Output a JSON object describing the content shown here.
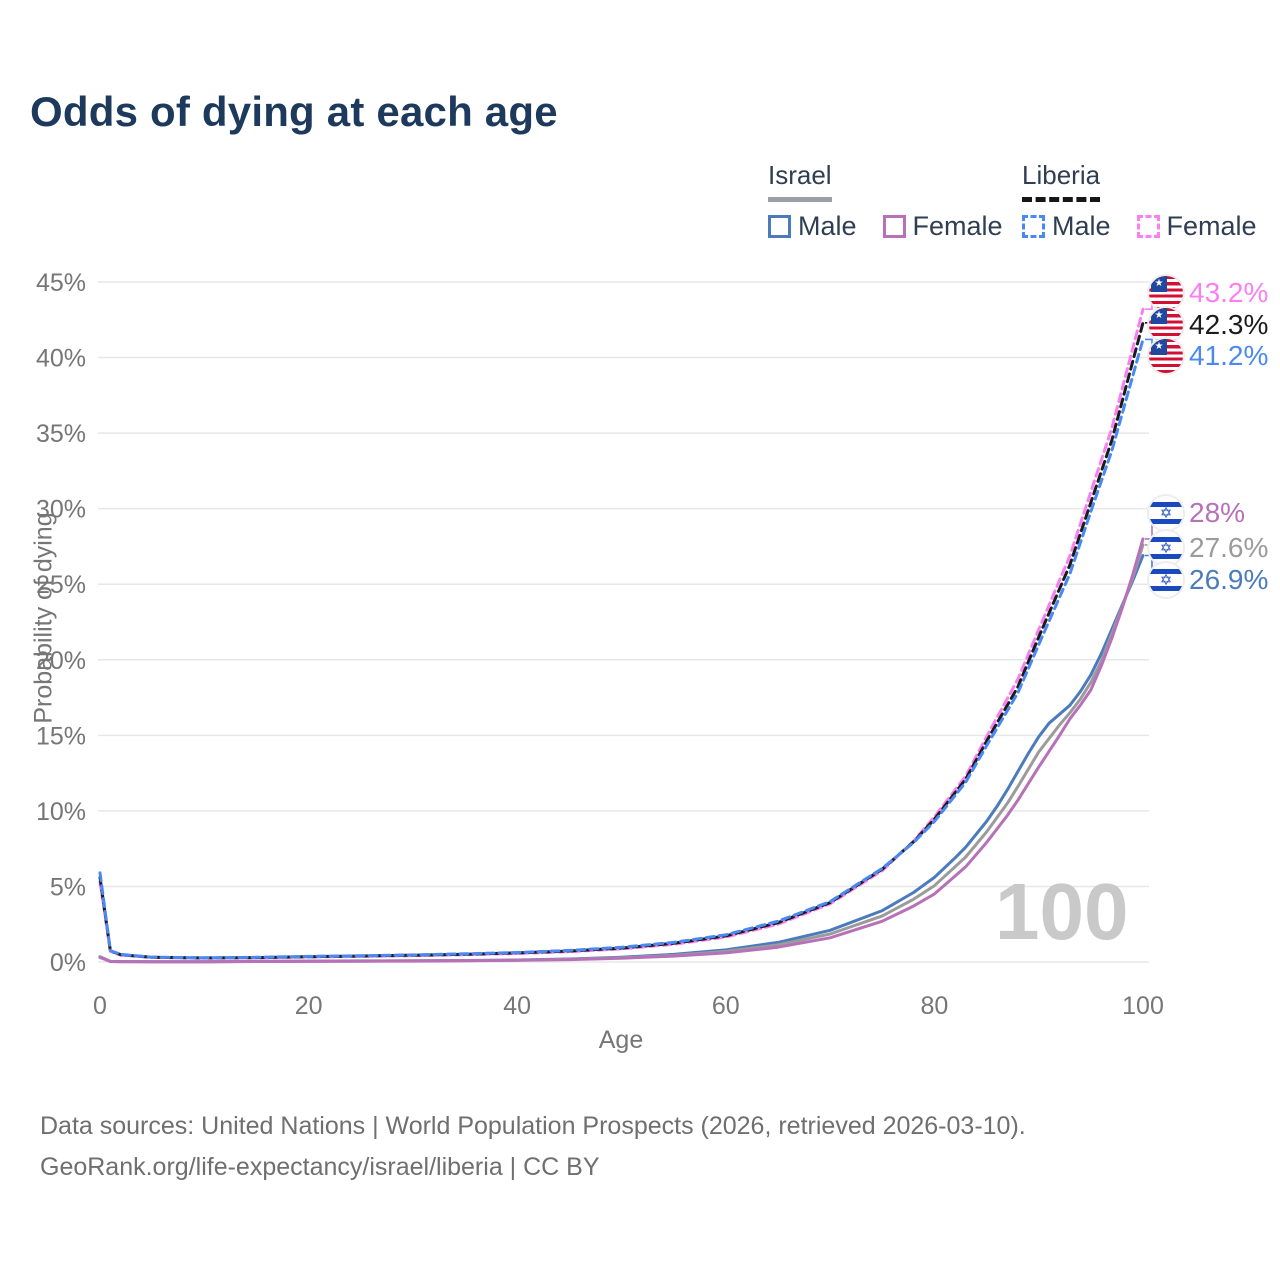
{
  "title": "Odds of dying at each age",
  "legend": {
    "groups": [
      {
        "name": "Israel",
        "line_style": "solid",
        "items": [
          {
            "label": "Male"
          },
          {
            "label": "Female"
          }
        ]
      },
      {
        "name": "Liberia",
        "line_style": "dashed",
        "items": [
          {
            "label": "Male"
          },
          {
            "label": "Female"
          }
        ]
      }
    ]
  },
  "footer": {
    "line1": "Data sources: United Nations | World Population Prospects (2026, retrieved 2026-03-10).",
    "line2": "GeoRank.org/life-expectancy/israel/liberia | CC BY"
  },
  "colors": {
    "title-color": "#1d3a5c",
    "legend-text": "#2f3e52",
    "legend-underline-israel": "#9aa0a6",
    "legend-underline-liberia": "#161616",
    "axis-text": "#767676",
    "grid": "#e7e7e7",
    "watermark": "#c9c9c9",
    "footer-text": "#6f6f6f",
    "israel-male": "#4b7bbd",
    "israel-female": "#b671b8",
    "israel-total": "#9b9b9b",
    "liberia-male": "#4a89f3",
    "liberia-female": "#fb7ef2",
    "liberia-total": "#1c1c1c"
  },
  "chart_data": {
    "type": "line",
    "title": "Odds of dying at each age",
    "xlabel": "Age",
    "ylabel": "Probability of dying",
    "xlim": [
      0,
      100
    ],
    "ylim": [
      0,
      45
    ],
    "xticks": [
      0,
      20,
      40,
      60,
      80,
      100
    ],
    "yticks": [
      0,
      5,
      10,
      15,
      20,
      25,
      30,
      35,
      40,
      45
    ],
    "y_unit": "%",
    "grid": "horizontal",
    "legend_position": "top-right",
    "watermark": "100",
    "series": [
      {
        "key": "israel-male",
        "name": "Israel Male",
        "country": "Israel",
        "sex": "Male",
        "line_style": "solid",
        "points": [
          [
            0,
            0.35
          ],
          [
            1,
            0.04
          ],
          [
            2,
            0.03
          ],
          [
            5,
            0.02
          ],
          [
            10,
            0.02
          ],
          [
            15,
            0.04
          ],
          [
            20,
            0.06
          ],
          [
            25,
            0.07
          ],
          [
            30,
            0.08
          ],
          [
            35,
            0.1
          ],
          [
            40,
            0.13
          ],
          [
            45,
            0.2
          ],
          [
            50,
            0.32
          ],
          [
            55,
            0.5
          ],
          [
            60,
            0.8
          ],
          [
            65,
            1.3
          ],
          [
            70,
            2.1
          ],
          [
            75,
            3.4
          ],
          [
            78,
            4.6
          ],
          [
            80,
            5.6
          ],
          [
            82,
            6.9
          ],
          [
            83,
            7.6
          ],
          [
            85,
            9.3
          ],
          [
            86,
            10.3
          ],
          [
            87,
            11.4
          ],
          [
            88,
            12.6
          ],
          [
            89,
            13.8
          ],
          [
            90,
            14.9
          ],
          [
            91,
            15.8
          ],
          [
            92,
            16.4
          ],
          [
            93,
            17.0
          ],
          [
            94,
            17.9
          ],
          [
            95,
            19.0
          ],
          [
            96,
            20.4
          ],
          [
            97,
            22.0
          ],
          [
            98,
            23.6
          ],
          [
            99,
            25.2
          ],
          [
            100,
            26.9
          ]
        ]
      },
      {
        "key": "israel-total",
        "name": "Israel Both sexes",
        "country": "Israel",
        "sex": "Both",
        "line_style": "solid",
        "points": [
          [
            0,
            0.33
          ],
          [
            1,
            0.035
          ],
          [
            2,
            0.025
          ],
          [
            5,
            0.02
          ],
          [
            10,
            0.02
          ],
          [
            15,
            0.035
          ],
          [
            20,
            0.05
          ],
          [
            25,
            0.06
          ],
          [
            30,
            0.07
          ],
          [
            35,
            0.09
          ],
          [
            40,
            0.12
          ],
          [
            45,
            0.18
          ],
          [
            50,
            0.28
          ],
          [
            55,
            0.44
          ],
          [
            60,
            0.7
          ],
          [
            65,
            1.13
          ],
          [
            70,
            1.85
          ],
          [
            75,
            3.05
          ],
          [
            78,
            4.15
          ],
          [
            80,
            5.05
          ],
          [
            83,
            6.95
          ],
          [
            85,
            8.6
          ],
          [
            87,
            10.5
          ],
          [
            88,
            11.6
          ],
          [
            90,
            13.9
          ],
          [
            92,
            15.7
          ],
          [
            93,
            16.5
          ],
          [
            94,
            17.4
          ],
          [
            95,
            18.5
          ],
          [
            96,
            19.9
          ],
          [
            97,
            21.7
          ],
          [
            98,
            23.5
          ],
          [
            99,
            25.4
          ],
          [
            100,
            27.6
          ]
        ]
      },
      {
        "key": "israel-female",
        "name": "Israel Female",
        "country": "Israel",
        "sex": "Female",
        "line_style": "solid",
        "points": [
          [
            0,
            0.3
          ],
          [
            1,
            0.03
          ],
          [
            2,
            0.02
          ],
          [
            5,
            0.02
          ],
          [
            10,
            0.02
          ],
          [
            15,
            0.03
          ],
          [
            20,
            0.04
          ],
          [
            25,
            0.05
          ],
          [
            30,
            0.06
          ],
          [
            35,
            0.08
          ],
          [
            40,
            0.11
          ],
          [
            45,
            0.16
          ],
          [
            50,
            0.25
          ],
          [
            55,
            0.39
          ],
          [
            60,
            0.6
          ],
          [
            65,
            0.98
          ],
          [
            70,
            1.6
          ],
          [
            75,
            2.7
          ],
          [
            78,
            3.7
          ],
          [
            80,
            4.5
          ],
          [
            83,
            6.3
          ],
          [
            85,
            7.9
          ],
          [
            87,
            9.7
          ],
          [
            88,
            10.7
          ],
          [
            90,
            12.9
          ],
          [
            92,
            15.0
          ],
          [
            93,
            16.1
          ],
          [
            94,
            17.0
          ],
          [
            95,
            18.0
          ],
          [
            96,
            19.6
          ],
          [
            97,
            21.4
          ],
          [
            98,
            23.4
          ],
          [
            99,
            25.6
          ],
          [
            100,
            28.0
          ]
        ]
      },
      {
        "key": "liberia-female",
        "name": "Liberia Female",
        "country": "Liberia",
        "sex": "Female",
        "line_style": "dashed",
        "points": [
          [
            0,
            5.3
          ],
          [
            1,
            0.7
          ],
          [
            2,
            0.45
          ],
          [
            5,
            0.3
          ],
          [
            10,
            0.25
          ],
          [
            15,
            0.27
          ],
          [
            20,
            0.33
          ],
          [
            25,
            0.37
          ],
          [
            30,
            0.42
          ],
          [
            35,
            0.48
          ],
          [
            40,
            0.56
          ],
          [
            45,
            0.68
          ],
          [
            50,
            0.87
          ],
          [
            55,
            1.17
          ],
          [
            60,
            1.65
          ],
          [
            65,
            2.5
          ],
          [
            70,
            3.85
          ],
          [
            75,
            6.05
          ],
          [
            78,
            8.0
          ],
          [
            80,
            9.6
          ],
          [
            83,
            12.3
          ],
          [
            85,
            14.9
          ],
          [
            88,
            18.7
          ],
          [
            90,
            22.0
          ],
          [
            93,
            26.9
          ],
          [
            95,
            31.1
          ],
          [
            97,
            35.3
          ],
          [
            100,
            43.2
          ]
        ]
      },
      {
        "key": "liberia-total",
        "name": "Liberia Both sexes",
        "country": "Liberia",
        "sex": "Both",
        "line_style": "dashed",
        "points": [
          [
            0,
            5.6
          ],
          [
            1,
            0.72
          ],
          [
            2,
            0.48
          ],
          [
            5,
            0.31
          ],
          [
            10,
            0.27
          ],
          [
            15,
            0.29
          ],
          [
            20,
            0.35
          ],
          [
            25,
            0.4
          ],
          [
            30,
            0.45
          ],
          [
            35,
            0.51
          ],
          [
            40,
            0.6
          ],
          [
            45,
            0.73
          ],
          [
            50,
            0.92
          ],
          [
            55,
            1.24
          ],
          [
            60,
            1.73
          ],
          [
            65,
            2.6
          ],
          [
            70,
            3.93
          ],
          [
            75,
            6.15
          ],
          [
            78,
            7.95
          ],
          [
            80,
            9.45
          ],
          [
            83,
            12.1
          ],
          [
            85,
            14.6
          ],
          [
            88,
            18.2
          ],
          [
            90,
            21.5
          ],
          [
            93,
            26.3
          ],
          [
            95,
            30.4
          ],
          [
            97,
            34.5
          ],
          [
            100,
            42.3
          ]
        ]
      },
      {
        "key": "liberia-male",
        "name": "Liberia Male",
        "country": "Liberia",
        "sex": "Male",
        "line_style": "dashed",
        "points": [
          [
            0,
            5.9
          ],
          [
            1,
            0.75
          ],
          [
            2,
            0.5
          ],
          [
            5,
            0.32
          ],
          [
            10,
            0.28
          ],
          [
            15,
            0.31
          ],
          [
            20,
            0.37
          ],
          [
            25,
            0.42
          ],
          [
            30,
            0.47
          ],
          [
            35,
            0.54
          ],
          [
            40,
            0.63
          ],
          [
            45,
            0.77
          ],
          [
            50,
            0.97
          ],
          [
            55,
            1.3
          ],
          [
            60,
            1.8
          ],
          [
            65,
            2.7
          ],
          [
            70,
            4.0
          ],
          [
            75,
            6.2
          ],
          [
            78,
            7.9
          ],
          [
            80,
            9.3
          ],
          [
            83,
            11.9
          ],
          [
            85,
            14.3
          ],
          [
            88,
            17.8
          ],
          [
            90,
            21.0
          ],
          [
            93,
            25.7
          ],
          [
            95,
            29.8
          ],
          [
            97,
            33.8
          ],
          [
            100,
            41.2
          ]
        ]
      }
    ],
    "end_labels": [
      {
        "series": "liberia-female",
        "flag": "liberia",
        "text": "43.2%",
        "value": 43.2
      },
      {
        "series": "liberia-total",
        "flag": "liberia",
        "text": "42.3%",
        "value": 42.3
      },
      {
        "series": "liberia-male",
        "flag": "liberia",
        "text": "41.2%",
        "value": 41.2
      },
      {
        "series": "israel-female",
        "flag": "israel",
        "text": "28%",
        "value": 28.0
      },
      {
        "series": "israel-total",
        "flag": "israel",
        "text": "27.6%",
        "value": 27.6
      },
      {
        "series": "israel-male",
        "flag": "israel",
        "text": "26.9%",
        "value": 26.9
      }
    ]
  }
}
